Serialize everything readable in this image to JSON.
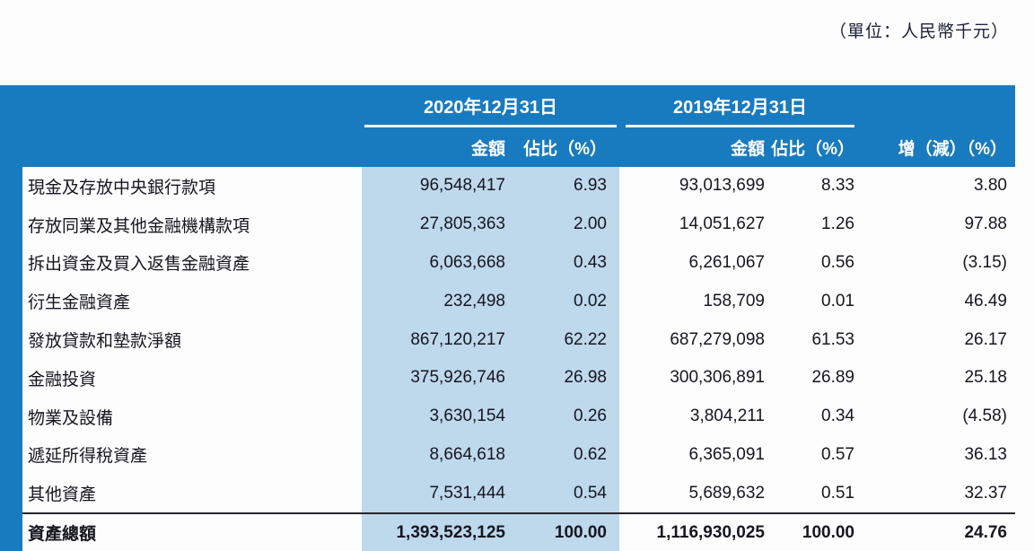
{
  "unit_note": "（單位：人民幣千元）",
  "header": {
    "group_2020": "2020年12月31日",
    "group_2019": "2019年12月31日",
    "amount_label": "金額",
    "ratio_label": "佔比（%）",
    "change_label": "增（減）（%）"
  },
  "rows": [
    {
      "label": "現金及存放中央銀行款項",
      "a20": "96,548,417",
      "p20": "6.93",
      "a19": "93,013,699",
      "p19": "8.33",
      "chg": "3.80"
    },
    {
      "label": "存放同業及其他金融機構款項",
      "a20": "27,805,363",
      "p20": "2.00",
      "a19": "14,051,627",
      "p19": "1.26",
      "chg": "97.88"
    },
    {
      "label": "拆出資金及買入返售金融資產",
      "a20": "6,063,668",
      "p20": "0.43",
      "a19": "6,261,067",
      "p19": "0.56",
      "chg": "(3.15)"
    },
    {
      "label": "衍生金融資產",
      "a20": "232,498",
      "p20": "0.02",
      "a19": "158,709",
      "p19": "0.01",
      "chg": "46.49"
    },
    {
      "label": "發放貸款和墊款淨額",
      "a20": "867,120,217",
      "p20": "62.22",
      "a19": "687,279,098",
      "p19": "61.53",
      "chg": "26.17"
    },
    {
      "label": "金融投資",
      "a20": "375,926,746",
      "p20": "26.98",
      "a19": "300,306,891",
      "p19": "26.89",
      "chg": "25.18"
    },
    {
      "label": "物業及設備",
      "a20": "3,630,154",
      "p20": "0.26",
      "a19": "3,804,211",
      "p19": "0.34",
      "chg": "(4.58)"
    },
    {
      "label": "遞延所得稅資產",
      "a20": "8,664,618",
      "p20": "0.62",
      "a19": "6,365,091",
      "p19": "0.57",
      "chg": "36.13"
    },
    {
      "label": "其他資產",
      "a20": "7,531,444",
      "p20": "0.54",
      "a19": "5,689,632",
      "p19": "0.51",
      "chg": "32.37"
    }
  ],
  "total": {
    "label": "資產總額",
    "a20": "1,393,523,125",
    "p20": "100.00",
    "a19": "1,116,930,025",
    "p19": "100.00",
    "chg": "24.76"
  },
  "colors": {
    "header_blue": "#187bc0",
    "column_highlight": "#bed8ec"
  }
}
